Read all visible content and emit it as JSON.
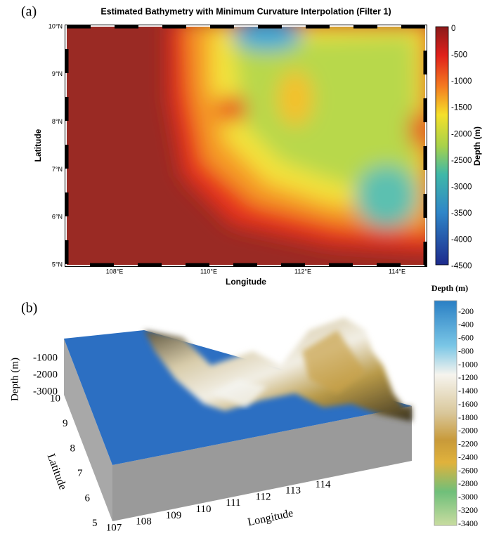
{
  "panel_a": {
    "label": "(a)",
    "title": "Estimated Bathymetry with Minimum Curvature Interpolation (Filter 1)",
    "x_label": "Longitude",
    "y_label": "Latitude",
    "x_ticks": [
      "108°E",
      "110°E",
      "112°E",
      "114°E"
    ],
    "y_ticks": [
      "10°N",
      "9°N",
      "8°N",
      "7°N",
      "6°N",
      "5°N"
    ],
    "colorbar_label": "Depth (m)",
    "colorbar_ticks": [
      "0",
      "-500",
      "-1000",
      "-1500",
      "-2000",
      "-2500",
      "-3000",
      "-3500",
      "-4000",
      "-4500"
    ]
  },
  "panel_b": {
    "label": "(b)",
    "z_label": "Depth (m)",
    "y_label": "Latitude",
    "x_label": "Longitude",
    "z_ticks": [
      "-1000",
      "-2000",
      "-3000"
    ],
    "y_ticks": [
      "10",
      "9",
      "8",
      "7",
      "6",
      "5"
    ],
    "x_ticks": [
      "107",
      "108",
      "109",
      "110",
      "111",
      "112",
      "113",
      "114"
    ],
    "colorbar_label": "Depth (m)",
    "colorbar_ticks": [
      "-200",
      "-400",
      "-600",
      "-800",
      "-1000",
      "-1200",
      "-1400",
      "-1600",
      "-1800",
      "-2000",
      "-2200",
      "-2400",
      "-2600",
      "-2800",
      "-3000",
      "-3200",
      "-3400"
    ]
  }
}
